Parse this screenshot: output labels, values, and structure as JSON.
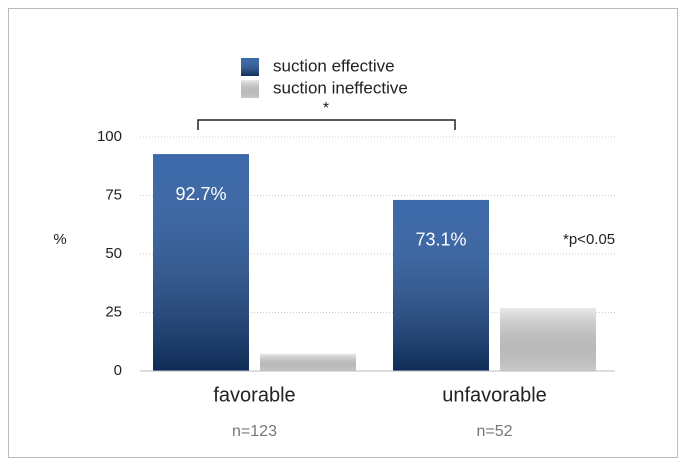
{
  "chart_data": {
    "type": "bar",
    "categories": [
      "favorable",
      "unfavorable"
    ],
    "category_notes": [
      "n=123",
      "n=52"
    ],
    "series": [
      {
        "name": "suction effective",
        "color": "#1a4f9c",
        "values": [
          92.7,
          73.1
        ],
        "value_labels": [
          "92.7%",
          "73.1%"
        ]
      },
      {
        "name": "suction ineffective",
        "color": "#d4d4d4",
        "values": [
          7.3,
          26.9
        ]
      }
    ],
    "y_label": "%",
    "ylim": [
      0,
      100
    ],
    "yticks": [
      0,
      25,
      50,
      75,
      100
    ],
    "grid": true,
    "annotations": [
      "*",
      "*p<0.05"
    ]
  }
}
